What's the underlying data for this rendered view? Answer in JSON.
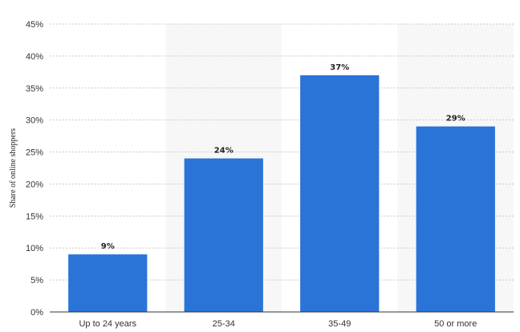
{
  "chart_data": {
    "type": "bar",
    "title": "",
    "xlabel": "",
    "ylabel": "Share of online shoppers",
    "categories": [
      "Up to 24 years",
      "25-34",
      "35-49",
      "50 or more"
    ],
    "values": [
      9,
      24,
      37,
      29
    ],
    "data_labels": [
      "9%",
      "24%",
      "37%",
      "29%"
    ],
    "ylim": [
      0,
      45
    ],
    "yticks": [
      0,
      5,
      10,
      15,
      20,
      25,
      30,
      35,
      40,
      45
    ],
    "ytick_labels": [
      "0%",
      "5%",
      "10%",
      "15%",
      "20%",
      "25%",
      "30%",
      "35%",
      "40%",
      "45%"
    ],
    "grid": true,
    "bar_color": "#2a74d8",
    "band_color": "#f7f7f7"
  }
}
